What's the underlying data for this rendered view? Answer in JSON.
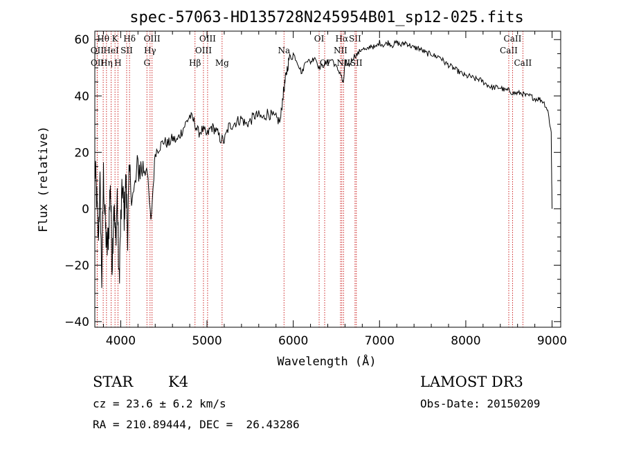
{
  "chart_data": {
    "type": "line",
    "title": "spec-57063-HD135728N245954B01_sp12-025.fits",
    "xlabel": "Wavelength (Å)",
    "ylabel": "Flux (relative)",
    "xlim": [
      3700,
      9100
    ],
    "ylim": [
      -42,
      63
    ],
    "xticks": [
      4000,
      5000,
      6000,
      7000,
      8000,
      9000
    ],
    "yticks": [
      -40,
      -20,
      0,
      20,
      40,
      60
    ],
    "grid": false,
    "series": [
      {
        "name": "spectrum",
        "x": [
          3700,
          3720,
          3740,
          3760,
          3780,
          3800,
          3820,
          3840,
          3860,
          3880,
          3900,
          3920,
          3940,
          3960,
          3980,
          4000,
          4020,
          4040,
          4060,
          4080,
          4100,
          4150,
          4200,
          4250,
          4300,
          4350,
          4400,
          4450,
          4500,
          4550,
          4600,
          4650,
          4700,
          4750,
          4800,
          4850,
          4900,
          4950,
          5000,
          5050,
          5100,
          5150,
          5200,
          5250,
          5300,
          5350,
          5400,
          5450,
          5500,
          5550,
          5600,
          5650,
          5700,
          5750,
          5800,
          5850,
          5880,
          5900,
          5920,
          5950,
          6000,
          6050,
          6100,
          6150,
          6200,
          6250,
          6300,
          6350,
          6400,
          6450,
          6500,
          6550,
          6580,
          6600,
          6650,
          6700,
          6750,
          6800,
          6850,
          6900,
          6950,
          7000,
          7050,
          7100,
          7150,
          7200,
          7250,
          7300,
          7350,
          7400,
          7450,
          7500,
          7550,
          7600,
          7650,
          7700,
          7750,
          7800,
          7850,
          7900,
          7950,
          8000,
          8050,
          8100,
          8150,
          8200,
          8250,
          8300,
          8350,
          8400,
          8450,
          8500,
          8550,
          8600,
          8650,
          8700,
          8750,
          8800,
          8850,
          8900,
          8950,
          8990,
          8995,
          9000
        ],
        "y": [
          15,
          5,
          -10,
          8,
          -25,
          12,
          -5,
          -15,
          -8,
          10,
          -20,
          2,
          -12,
          5,
          -27,
          -5,
          8,
          -2,
          10,
          -8,
          12,
          4,
          15,
          14,
          16,
          -5,
          20,
          22,
          24,
          23,
          25,
          24,
          27,
          30,
          33,
          31,
          27,
          28,
          26,
          29,
          28,
          25,
          24,
          29,
          30,
          31,
          32,
          30,
          31,
          33,
          33,
          32,
          34,
          33,
          32,
          31,
          40,
          44,
          48,
          53,
          55,
          52,
          48,
          53,
          52,
          54,
          50,
          51,
          52,
          53,
          50,
          48,
          44,
          52,
          51,
          54,
          55,
          57,
          56,
          58,
          57,
          59,
          58,
          59,
          58,
          59,
          58,
          59,
          58,
          57,
          57,
          56,
          55,
          55,
          54,
          54,
          52,
          51,
          50,
          49,
          48,
          47,
          47,
          46,
          46,
          45,
          44,
          43,
          43,
          43,
          42,
          42,
          41,
          41,
          41,
          40,
          40,
          39,
          39,
          38,
          35,
          27,
          12,
          0
        ]
      }
    ],
    "spectral_lines": [
      {
        "label": "Hθ",
        "x": 3797,
        "row": 1
      },
      {
        "label": "OII",
        "x": 3727,
        "row": 2
      },
      {
        "label": "OII",
        "x": 3729,
        "row": 3
      },
      {
        "label": "HeI",
        "x": 3889,
        "row": 2
      },
      {
        "label": "Hη",
        "x": 3835,
        "row": 3
      },
      {
        "label": "K",
        "x": 3934,
        "row": 1
      },
      {
        "label": "H",
        "x": 3968,
        "row": 3
      },
      {
        "label": "SII",
        "x": 4069,
        "row": 2
      },
      {
        "label": "Hδ",
        "x": 4102,
        "row": 1
      },
      {
        "label": "OIII",
        "x": 4363,
        "row": 1
      },
      {
        "label": "Hγ",
        "x": 4340,
        "row": 2
      },
      {
        "label": "G",
        "x": 4304,
        "row": 3
      },
      {
        "label": "Hβ",
        "x": 4861,
        "row": 3
      },
      {
        "label": "OIII",
        "x": 5007,
        "row": 1
      },
      {
        "label": "OIII",
        "x": 4959,
        "row": 2
      },
      {
        "label": "Mg",
        "x": 5175,
        "row": 3
      },
      {
        "label": "Na",
        "x": 5893,
        "row": 2
      },
      {
        "label": "OI",
        "x": 6300,
        "row": 1
      },
      {
        "label": "OI",
        "x": 6364,
        "row": 3
      },
      {
        "label": "Hα",
        "x": 6563,
        "row": 1
      },
      {
        "label": "NII",
        "x": 6548,
        "row": 2
      },
      {
        "label": "NII",
        "x": 6583,
        "row": 3
      },
      {
        "label": "SII",
        "x": 6716,
        "row": 1
      },
      {
        "label": "SII",
        "x": 6731,
        "row": 3
      },
      {
        "label": "CaII",
        "x": 8498,
        "row": 2
      },
      {
        "label": "CaII",
        "x": 8542,
        "row": 1
      },
      {
        "label": "CaII",
        "x": 8662,
        "row": 3
      }
    ]
  },
  "info": {
    "object_class": "STAR",
    "subclass": "K4",
    "survey": "LAMOST DR3",
    "redshift": "cz = 23.6 ± 6.2 km/s",
    "obs_date": "Obs-Date: 20150209",
    "coords": "RA = 210.89444, DEC =  26.43286"
  }
}
